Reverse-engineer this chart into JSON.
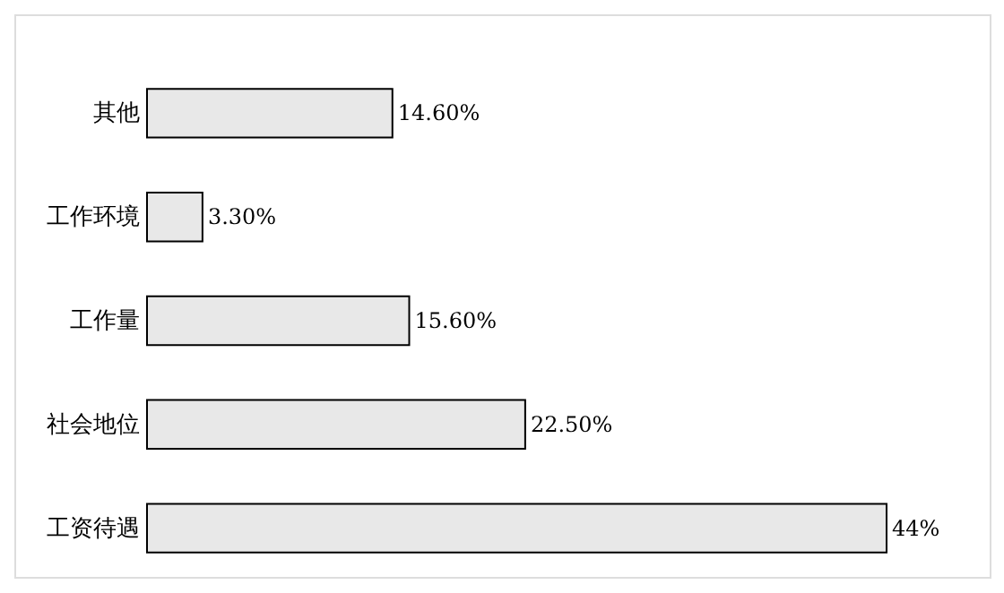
{
  "chart_data": {
    "type": "bar",
    "orientation": "horizontal",
    "categories": [
      "其他",
      "工作环境",
      "工作量",
      "社会地位",
      "工资待遇"
    ],
    "values": [
      14.6,
      3.3,
      15.6,
      22.5,
      44
    ],
    "value_labels": [
      "14.60%",
      "3.30%",
      "15.60%",
      "22.50%",
      "44%"
    ],
    "color": "#e8e8e8",
    "tick_labels": false
  }
}
